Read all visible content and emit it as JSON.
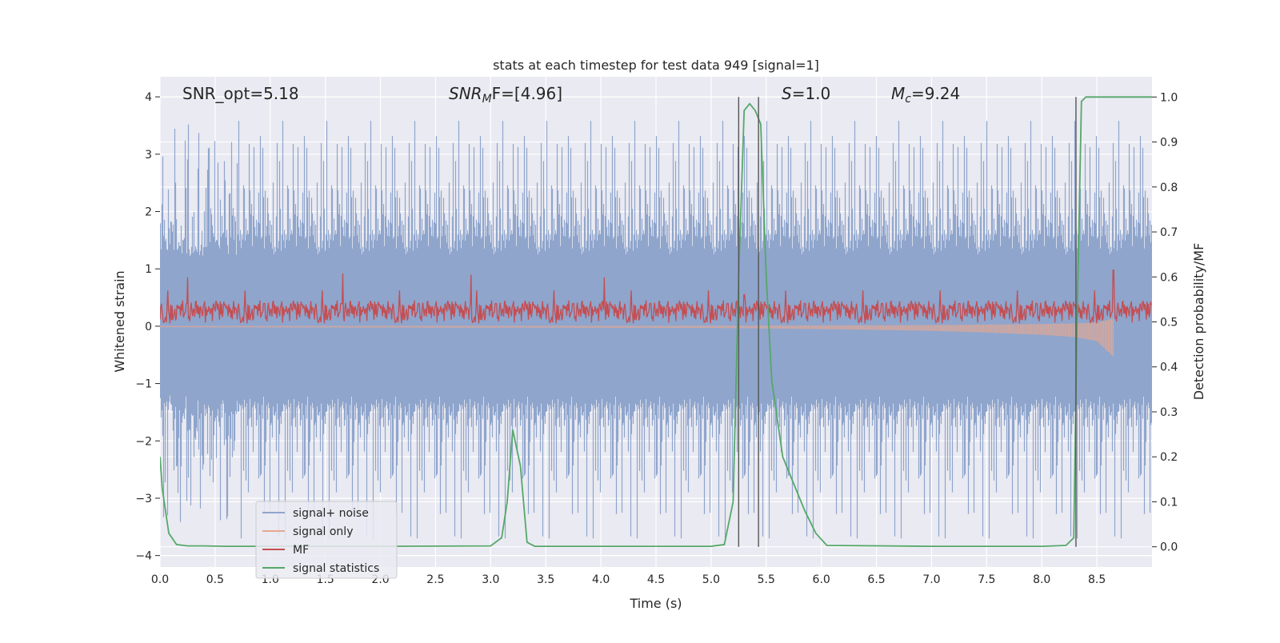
{
  "chart_data": {
    "type": "line",
    "title": "stats at each timestep for test data 949 [signal=1]",
    "xlabel": "Time (s)",
    "ylabel_left": "Whitened strain",
    "ylabel_right": "Detection probability/MF",
    "xlim": [
      0.0,
      9.0
    ],
    "ylim_left": [
      -4.2,
      4.35
    ],
    "ylim_right": [
      -0.045,
      1.045
    ],
    "x_ticks": [
      "0.0",
      "0.5",
      "1.0",
      "1.5",
      "2.0",
      "2.5",
      "3.0",
      "3.5",
      "4.0",
      "4.5",
      "5.0",
      "5.5",
      "6.0",
      "6.5",
      "7.0",
      "7.5",
      "8.0",
      "8.5"
    ],
    "y_ticks_left": [
      "4",
      "3",
      "2",
      "1",
      "0",
      "−1",
      "−2",
      "−3",
      "−4"
    ],
    "y_ticks_right": [
      "1.0",
      "0.9",
      "0.8",
      "0.7",
      "0.6",
      "0.5",
      "0.4",
      "0.3",
      "0.2",
      "0.1",
      "0.0"
    ],
    "grid": true,
    "legend_position": "lower-left",
    "annotations": {
      "snr_opt": "SNR_opt=5.18",
      "snr_mf_base": "SNR",
      "snr_mf_sub": "M",
      "snr_mf_rest": "F=[4.96]",
      "s_symbol": "S",
      "s_value": "=1.0",
      "mc_symbol": "M",
      "mc_sub": "c",
      "mc_value": "=9.24"
    },
    "vertical_lines_x": [
      5.25,
      5.43,
      8.31
    ],
    "series": [
      {
        "name": "signal+ noise",
        "color": "#8fa5cc",
        "axis": "left",
        "description_envelope": {
          "upper": [
            1.4,
            3.5
          ],
          "lower": [
            -1.4,
            -3.6
          ]
        }
      },
      {
        "name": "signal only",
        "color": "#e8a890",
        "axis": "left",
        "x": [
          0.0,
          5.0,
          6.0,
          7.0,
          7.5,
          8.0,
          8.3,
          8.5,
          8.66,
          8.67
        ],
        "amplitude": [
          0.02,
          0.03,
          0.05,
          0.08,
          0.11,
          0.15,
          0.19,
          0.26,
          0.55,
          0.0
        ]
      },
      {
        "name": "MF",
        "color": "#c44e52",
        "axis": "left",
        "band": [
          0.05,
          0.45
        ],
        "peaks": [
          [
            0.25,
            0.85
          ],
          [
            1.66,
            0.92
          ],
          [
            2.82,
            0.9
          ],
          [
            4.03,
            0.85
          ],
          [
            5.3,
            0.55
          ],
          [
            8.65,
            0.98
          ]
        ]
      },
      {
        "name": "signal statistics",
        "color": "#55a868",
        "axis": "right",
        "x": [
          0.0,
          0.02,
          0.08,
          0.15,
          0.25,
          0.4,
          0.6,
          1.0,
          2.0,
          3.0,
          3.1,
          3.15,
          3.2,
          3.27,
          3.33,
          3.4,
          4.0,
          5.0,
          5.12,
          5.2,
          5.25,
          5.3,
          5.35,
          5.4,
          5.45,
          5.5,
          5.55,
          5.65,
          5.75,
          5.85,
          5.95,
          6.05,
          7.0,
          8.0,
          8.22,
          8.29,
          8.32,
          8.36,
          8.4,
          8.5,
          9.0
        ],
        "y": [
          0.2,
          0.13,
          0.03,
          0.005,
          0.002,
          0.002,
          0.001,
          0.001,
          0.001,
          0.002,
          0.02,
          0.1,
          0.26,
          0.18,
          0.01,
          0.001,
          0.001,
          0.001,
          0.005,
          0.1,
          0.6,
          0.97,
          0.985,
          0.97,
          0.94,
          0.6,
          0.37,
          0.2,
          0.14,
          0.08,
          0.03,
          0.003,
          0.001,
          0.001,
          0.003,
          0.02,
          0.5,
          0.99,
          1.0,
          1.0,
          1.0
        ]
      }
    ]
  }
}
